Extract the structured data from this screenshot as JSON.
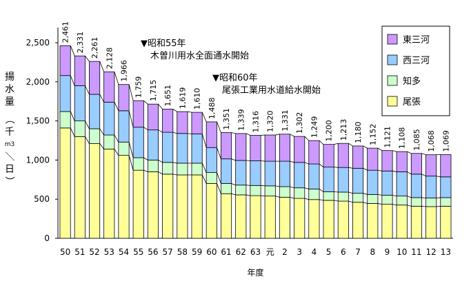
{
  "chart_data": {
    "type": "bar",
    "stacked": true,
    "categories": [
      "50",
      "51",
      "52",
      "53",
      "54",
      "55",
      "56",
      "57",
      "58",
      "59",
      "60",
      "61",
      "62",
      "63",
      "元",
      "2",
      "3",
      "4",
      "5",
      "6",
      "7",
      "8",
      "9",
      "10",
      "11",
      "12",
      "13"
    ],
    "series": [
      {
        "name": "尾張",
        "color": "#ffff99",
        "values": [
          1410,
          1300,
          1210,
          1140,
          1060,
          870,
          850,
          820,
          810,
          810,
          700,
          570,
          555,
          545,
          540,
          525,
          510,
          495,
          485,
          475,
          460,
          445,
          435,
          425,
          410,
          405,
          410
        ]
      },
      {
        "name": "知多",
        "color": "#ccffcc",
        "values": [
          210,
          200,
          190,
          180,
          170,
          160,
          150,
          150,
          150,
          150,
          140,
          130,
          125,
          130,
          130,
          135,
          135,
          135,
          110,
          115,
          115,
          115,
          115,
          115,
          110,
          110,
          110
        ]
      },
      {
        "name": "西三河",
        "color": "#99ccff",
        "values": [
          460,
          450,
          440,
          420,
          400,
          390,
          385,
          385,
          380,
          375,
          320,
          315,
          315,
          315,
          315,
          325,
          325,
          320,
          315,
          315,
          320,
          310,
          310,
          310,
          300,
          280,
          265
        ]
      },
      {
        "name": "東三河",
        "color": "#cc99ff",
        "values": [
          381,
          381,
          421,
          388,
          336,
          339,
          330,
          296,
          279,
          275,
          328,
          336,
          344,
          326,
          335,
          346,
          332,
          299,
          290,
          308,
          285,
          282,
          261,
          258,
          265,
          273,
          284
        ]
      }
    ],
    "totals": [
      "2,461",
      "2,331",
      "2,261",
      "2,128",
      "1,966",
      "1,759",
      "1,715",
      "1,651",
      "1,619",
      "1,610",
      "1,488",
      "1,351",
      "1,339",
      "1,316",
      "1,320",
      "1,331",
      "1,302",
      "1,249",
      "1,200",
      "1,213",
      "1,180",
      "1,152",
      "1,121",
      "1,108",
      "1,085",
      "1,068",
      "1,069"
    ],
    "ylim": [
      0,
      2500
    ],
    "yticks": [
      "0",
      "500",
      "1,000",
      "1,500",
      "2,000",
      "2,500"
    ],
    "ytick_values": [
      0,
      500,
      1000,
      1500,
      2000,
      2500
    ],
    "ylabel_top": "揚水量",
    "ylabel_unit": [
      "（",
      "千",
      "m3",
      "／",
      "日",
      "）"
    ],
    "xlabel": "年度",
    "legend_position": "top-right",
    "annotations": [
      {
        "marker": "▼",
        "line1": "昭和55年",
        "line2": "木曽川用水全面通水開始"
      },
      {
        "marker": "▼",
        "line1": "昭和60年",
        "line2": "尾張工業用水道給水開始"
      }
    ]
  }
}
